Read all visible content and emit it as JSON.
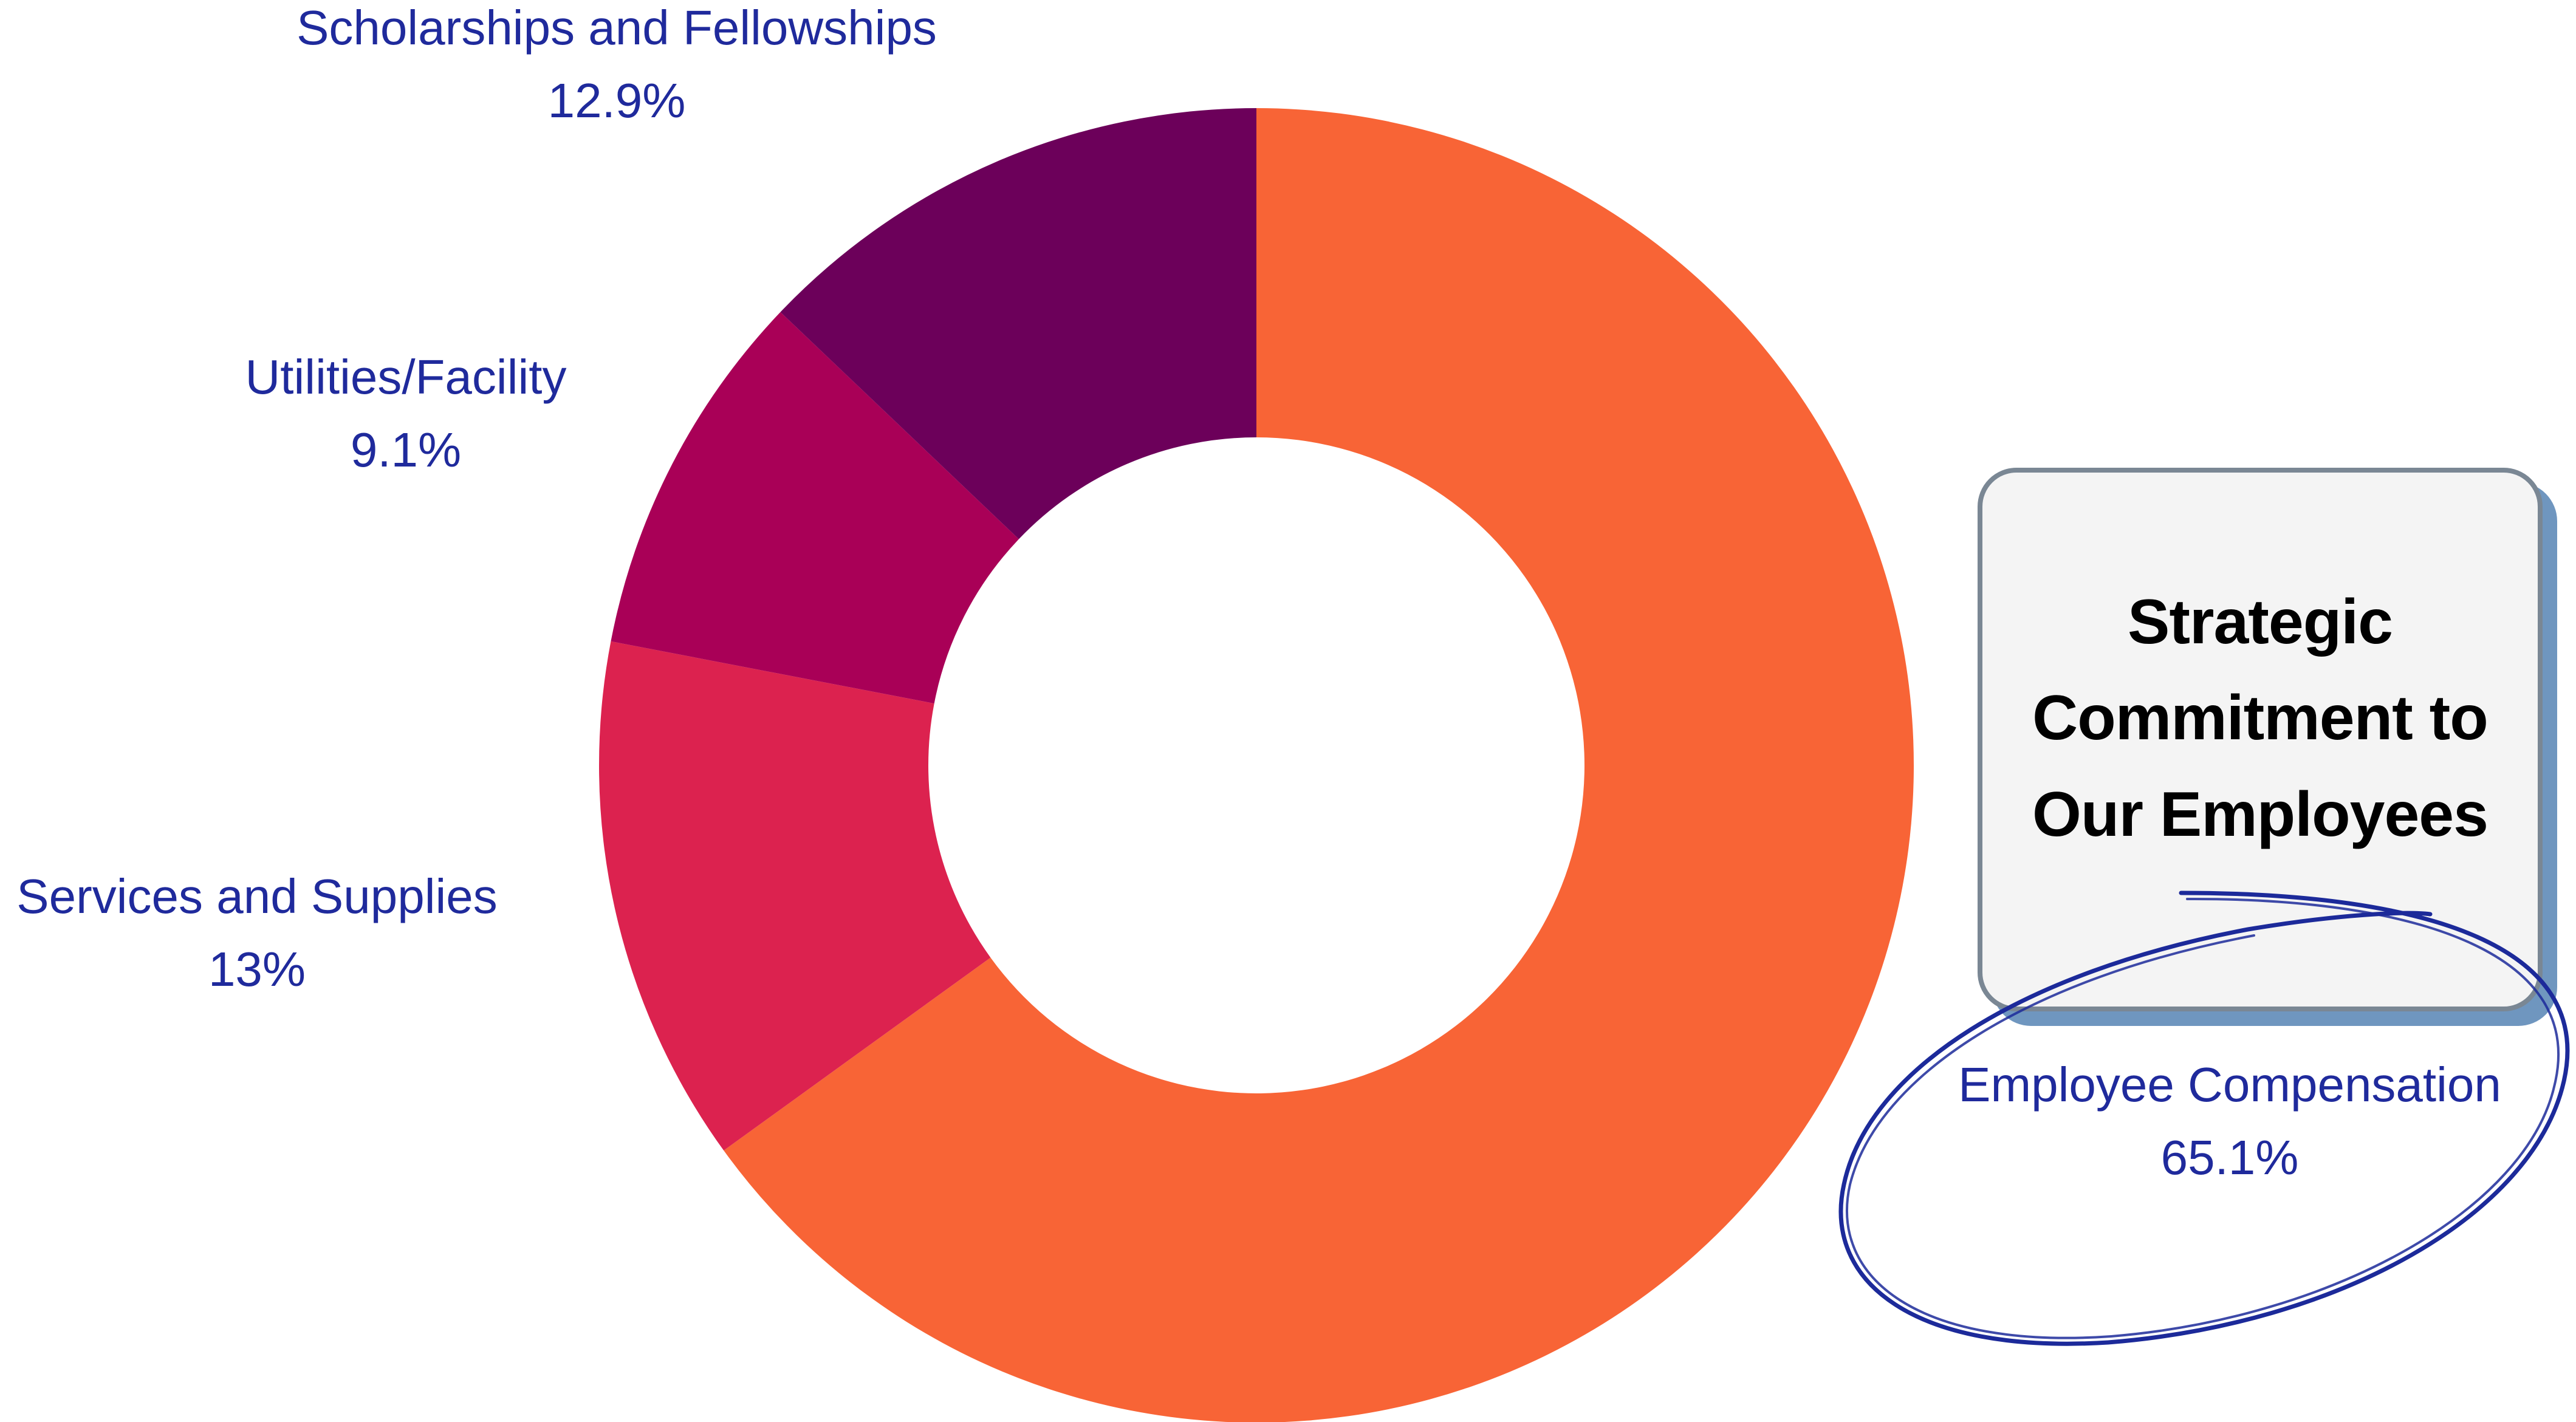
{
  "chart_data": {
    "type": "pie",
    "variant": "donut",
    "title": "",
    "slices": [
      {
        "name": "Employee Compensation",
        "value": 65.1,
        "label": "65.1%",
        "color": "#f86436"
      },
      {
        "name": "Services and Supplies",
        "value": 13.0,
        "label": "13%",
        "color": "#dc224f"
      },
      {
        "name": "Utilities/Facility",
        "value": 9.1,
        "label": "9.1%",
        "color": "#a90057"
      },
      {
        "name": "Scholarships and Fellowships",
        "value": 12.9,
        "label": "12.9%",
        "color": "#6c005a"
      }
    ],
    "label_color": "#1f2a9c",
    "start_angle": "12 o'clock",
    "direction": "clockwise"
  },
  "callout": {
    "text": "Strategic\nCommitment to\nOur Employees",
    "highlight_target": "Employee Compensation"
  }
}
